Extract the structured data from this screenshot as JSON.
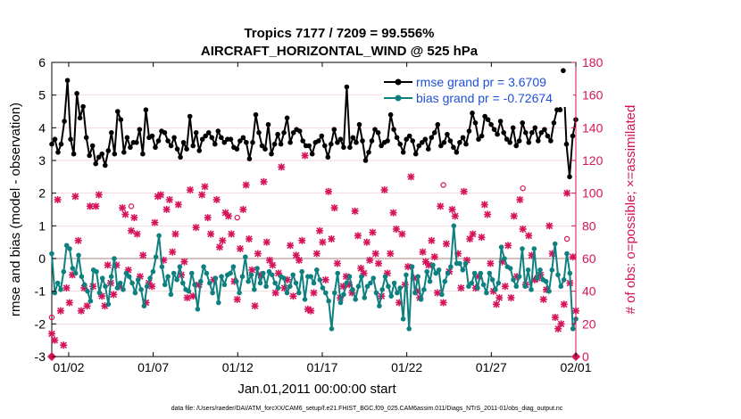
{
  "chart_data": {
    "type": "line",
    "title_line1": "Tropics 7177 / 7209 = 99.556%",
    "title_line2": "AIRCRAFT_HORIZONTAL_WIND @ 525 hPa",
    "xlabel": "Jan.01,2011 00:00:00 start",
    "ylabel_left": "rmse and bias (model - observation)",
    "ylabel_right": "# of obs: o=possible; ×=assimilated",
    "footer": "data file: /Users/raeder/DAI/ATM_forcXX/CAM6_setup/f.e21.FHIST_BGC.f09_025.CAM6assim.011/Diags_NTrS_2011-01/obs_diag_output.nc",
    "x_range": [
      0,
      31
    ],
    "x_ticks": [
      1,
      6,
      11,
      16,
      21,
      26,
      31
    ],
    "x_tick_labels": [
      "01/02",
      "01/07",
      "01/12",
      "01/17",
      "01/22",
      "01/27",
      "02/01"
    ],
    "ylim_left": [
      -3,
      6
    ],
    "y_ticks_left": [
      "-3",
      "-2",
      "-1",
      "0",
      "1",
      "2",
      "3",
      "4",
      "5",
      "6"
    ],
    "ylim_right": [
      0,
      180
    ],
    "y_ticks_right": [
      "0",
      "20",
      "40",
      "60",
      "80",
      "100",
      "120",
      "140",
      "160",
      "180"
    ],
    "colors": {
      "rmse": "#000000",
      "bias": "#0f8080",
      "obs": "#d6125a",
      "legend_text": "#1f4fd8",
      "zero_line": "#c8aaaa",
      "grid": "#f2c6d2"
    },
    "series": [
      {
        "name": "rmse grand pr = 3.6709",
        "values": [
          3.5,
          3.65,
          3.25,
          3.5,
          4.2,
          5.45,
          3.65,
          3.2,
          5.05,
          4.3,
          4.65,
          3.7,
          3.15,
          3.45,
          2.9,
          3.1,
          3.2,
          2.85,
          3.3,
          3.85,
          3.2,
          4.5,
          4.25,
          3.25,
          3.7,
          3.4,
          3.55,
          3.55,
          3.95,
          3.2,
          4.55,
          3.7,
          3.75,
          3.4,
          3.6,
          3.9,
          3.85,
          3.6,
          3.45,
          3.7,
          3.35,
          3.1,
          3.55,
          3.35,
          4.35,
          3.45,
          3.85,
          3.3,
          3.65,
          3.75,
          3.85,
          3.7,
          3.5,
          3.9,
          3.7,
          3.55,
          3.65,
          3.65,
          3.4,
          3.35,
          3.6,
          3.7,
          3.55,
          3.05,
          3.55,
          4.4,
          3.85,
          3.45,
          3.35,
          4.1,
          3.2,
          3.5,
          3.8,
          3.5,
          3.85,
          4.3,
          3.55,
          3.85,
          3.95,
          3.9,
          3.6,
          3.45,
          3.45,
          3.2,
          3.55,
          3.6,
          3.75,
          3.45,
          3.1,
          3.5,
          3.95,
          3.55,
          3.65,
          3.4,
          5.25,
          3.4,
          3.7,
          3.55,
          4.1,
          3.6,
          3.0,
          3.25,
          3.6,
          3.95,
          3.85,
          3.45,
          3.55,
          3.6,
          4.4,
          3.95,
          3.7,
          3.5,
          3.25,
          3.65,
          3.75,
          3.6,
          3.2,
          3.45,
          3.55,
          3.65,
          3.35,
          3.7,
          3.85,
          4.1,
          3.45,
          3.55,
          3.8,
          3.6,
          3.4,
          3.25,
          3.55,
          3.7,
          3.5,
          3.9,
          4.45,
          4.15,
          3.65,
          3.75,
          4.35,
          4.25,
          4.1,
          3.95,
          3.8,
          4.2,
          3.85,
          3.65,
          3.55,
          4.0,
          3.45,
          3.6,
          4.15,
          3.85,
          3.55,
          3.85,
          4.0,
          3.6,
          3.85,
          3.95,
          3.75,
          3.6,
          4.15,
          4.55,
          4.55,
          5.75,
          3.5,
          2.5,
          3.75,
          4.25
        ]
      },
      {
        "name": "bias grand pr = -0.72674",
        "values": [
          0.15,
          -1.05,
          -0.75,
          -0.95,
          -0.4,
          0.4,
          0.3,
          -0.3,
          -0.45,
          0.1,
          -0.55,
          -0.8,
          -1.0,
          -1.3,
          -0.35,
          -0.4,
          -1.05,
          -0.6,
          -0.85,
          -1.4,
          -0.55,
          0.0,
          -0.9,
          -0.75,
          -0.95,
          -0.45,
          -0.55,
          -0.75,
          -1.05,
          -0.65,
          -0.95,
          -1.45,
          -0.85,
          -0.6,
          -0.4,
          0.05,
          0.7,
          -0.25,
          -0.8,
          -0.55,
          -1.1,
          -0.45,
          -0.65,
          -0.25,
          -0.75,
          -0.95,
          -1.0,
          -0.45,
          -0.8,
          -1.55,
          -0.7,
          -0.25,
          -0.45,
          -0.75,
          -1.05,
          -0.6,
          -1.35,
          -0.55,
          -0.8,
          -0.5,
          -0.45,
          -0.25,
          -0.7,
          -1.05,
          -0.55,
          0.05,
          -0.7,
          -0.5,
          -0.95,
          -0.3,
          -0.75,
          -0.45,
          -0.85,
          -0.4,
          -0.5,
          -0.75,
          -0.9,
          -0.55,
          -0.6,
          -1.05,
          -0.85,
          -0.5,
          -0.75,
          -1.05,
          -0.4,
          -1.25,
          -0.55,
          -0.55,
          -0.75,
          -0.35,
          -0.65,
          -0.9,
          -1.05,
          -1.3,
          -2.15,
          -1.05,
          -0.45,
          -1.35,
          -1.1,
          -0.75,
          -0.55,
          -0.95,
          -1.25,
          -0.85,
          -0.55,
          -1.2,
          -0.85,
          -0.75,
          -0.6,
          -1.05,
          -1.45,
          -0.95,
          -0.55,
          -0.85,
          -1.15,
          -0.75,
          -1.05,
          -0.9,
          -1.85,
          -0.5,
          -2.15,
          -0.25,
          -1.05,
          -0.55,
          -1.25,
          -0.95,
          -0.4,
          -0.7,
          -0.2,
          -0.45,
          -0.35,
          -1.1,
          -0.7,
          -0.45,
          -0.25,
          1.0,
          -0.15,
          -0.15,
          -0.35,
          -0.15,
          -0.85,
          -0.75,
          -0.45,
          -0.9,
          -0.45,
          -0.8,
          -1.05,
          -0.45,
          -0.65,
          -0.95,
          -0.75,
          0.35,
          0.0,
          -0.25,
          -0.3,
          -0.65,
          -0.85,
          -0.55,
          0.3,
          -0.85,
          -0.35,
          -0.95,
          0.3,
          -0.6,
          -0.35,
          -0.65,
          -0.7,
          -1.0,
          -0.35,
          0.45,
          -0.5,
          -0.85,
          -0.65,
          0.15,
          -0.45,
          -2.15,
          -1.85
        ]
      },
      {
        "name": "obs count (× assimilated / o possible)",
        "values": [
          14,
          10,
          96,
          28,
          7,
          42,
          33,
          50,
          98,
          71,
          28,
          42,
          31,
          92,
          43,
          92,
          99,
          37,
          31,
          56,
          45,
          38,
          56,
          43,
          91,
          87,
          53,
          77,
          85,
          75,
          49,
          62,
          33,
          45,
          43,
          82,
          98,
          99,
          59,
          90,
          96,
          64,
          75,
          93,
          50,
          58,
          36,
          102,
          37,
          79,
          44,
          99,
          104,
          85,
          75,
          47,
          96,
          67,
          71,
          88,
          86,
          75,
          46,
          35,
          66,
          90,
          105,
          72,
          53,
          31,
          63,
          50,
          107,
          70,
          59,
          56,
          39,
          51,
          116,
          42,
          47,
          68,
          37,
          62,
          59,
          71,
          123,
          29,
          28,
          39,
          63,
          77,
          70,
          47,
          101,
          72,
          91,
          57,
          36,
          43,
          49,
          44,
          39,
          89,
          74,
          54,
          51,
          70,
          59,
          76,
          63,
          57,
          37,
          102,
          51,
          63,
          88,
          78,
          33,
          75,
          44,
          55,
          110,
          48,
          40,
          36,
          64,
          58,
          56,
          71,
          61,
          39,
          92,
          33,
          69,
          52,
          90,
          86,
          63,
          42,
          101,
          59,
          72,
          75,
          42,
          49,
          73,
          93,
          87,
          57,
          40,
          32,
          36,
          58,
          43,
          68,
          36,
          86,
          49,
          96,
          78,
          44,
          74,
          62,
          47,
          48,
          50,
          35,
          41,
          80,
          63,
          24,
          17,
          20,
          32,
          100,
          45,
          61,
          28
        ]
      }
    ],
    "annotations": [
      "18",
      "100",
      "115",
      "20"
    ]
  }
}
